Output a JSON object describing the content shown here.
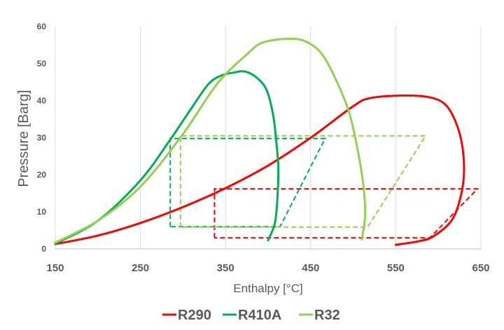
{
  "chart_data": {
    "type": "line",
    "xlabel": "Enthalpy [°C]",
    "ylabel": "Pressure [Barg]",
    "xlim": [
      150,
      650
    ],
    "ylim": [
      0,
      60
    ],
    "xticks": [
      150,
      250,
      350,
      450,
      550,
      650
    ],
    "yticks": [
      0,
      10,
      20,
      30,
      40,
      50,
      60
    ],
    "grid": "vertical",
    "legend_position": "bottom",
    "series": [
      {
        "name": "R290",
        "color": "#ff0000",
        "dome": [
          [
            150,
            1.3
          ],
          [
            200,
            3.6
          ],
          [
            250,
            7
          ],
          [
            300,
            11.3
          ],
          [
            350,
            16.4
          ],
          [
            400,
            22.5
          ],
          [
            450,
            30
          ],
          [
            500,
            38.5
          ],
          [
            520,
            40.7
          ],
          [
            560,
            41.4
          ],
          [
            590,
            40.9
          ],
          [
            608,
            39
          ],
          [
            620,
            34.5
          ],
          [
            628,
            28
          ],
          [
            630,
            20
          ],
          [
            625,
            13
          ],
          [
            615,
            7.5
          ],
          [
            595,
            3.5
          ],
          [
            580,
            2.2
          ],
          [
            550,
            1.1
          ]
        ],
        "cycle": [
          [
            337,
            3
          ],
          [
            337,
            16.2
          ],
          [
            646,
            16.2
          ],
          [
            590,
            3
          ],
          [
            337,
            3
          ]
        ]
      },
      {
        "name": "R410A",
        "color": "#00b050",
        "dome": [
          [
            150,
            1.4
          ],
          [
            200,
            7.6
          ],
          [
            250,
            18.5
          ],
          [
            285,
            29.5
          ],
          [
            310,
            38
          ],
          [
            330,
            44.5
          ],
          [
            345,
            46.8
          ],
          [
            360,
            47.6
          ],
          [
            372,
            47.9
          ],
          [
            385,
            46.5
          ],
          [
            398,
            43
          ],
          [
            406,
            36
          ],
          [
            410,
            28
          ],
          [
            412,
            22
          ],
          [
            411,
            14
          ],
          [
            408,
            7
          ],
          [
            400,
            2.3
          ]
        ],
        "cycle": [
          [
            285,
            6
          ],
          [
            285,
            29.8
          ],
          [
            467,
            29.8
          ],
          [
            414,
            6
          ],
          [
            285,
            6
          ]
        ]
      },
      {
        "name": "R32",
        "color": "#92d050",
        "dome": [
          [
            150,
            1.7
          ],
          [
            200,
            7.6
          ],
          [
            250,
            16.8
          ],
          [
            300,
            31
          ],
          [
            340,
            44.5
          ],
          [
            375,
            52.5
          ],
          [
            395,
            55.8
          ],
          [
            430,
            56.7
          ],
          [
            450,
            55.3
          ],
          [
            465,
            52
          ],
          [
            480,
            45.5
          ],
          [
            495,
            37
          ],
          [
            505,
            27
          ],
          [
            512,
            17
          ],
          [
            514,
            9
          ],
          [
            510,
            2.5
          ]
        ],
        "cycle": [
          [
            297,
            5.9
          ],
          [
            297,
            30.5
          ],
          [
            585,
            30.5
          ],
          [
            517,
            5.9
          ],
          [
            297,
            5.9
          ]
        ]
      }
    ]
  }
}
